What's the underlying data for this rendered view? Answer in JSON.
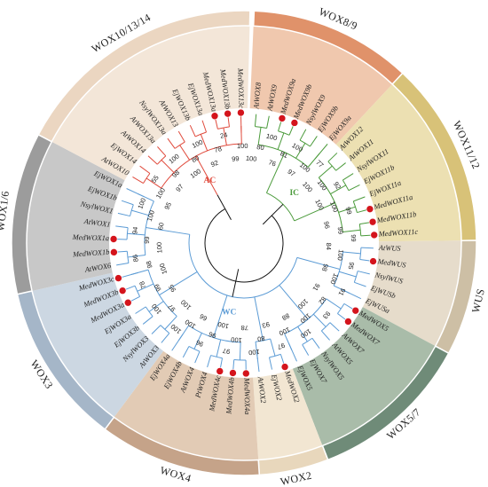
{
  "groups": [
    {
      "id": "wox8-9",
      "label": "WOX8/9",
      "color": "#e0926a",
      "bg": "#f0c8ae"
    },
    {
      "id": "wox11-12",
      "label": "WOX11/12",
      "color": "#d8c278",
      "bg": "#ece0b2"
    },
    {
      "id": "wus",
      "label": "WUS",
      "color": "#cdbfa5",
      "bg": "#e6dccb"
    },
    {
      "id": "wox5-7",
      "label": "WOX5/7",
      "color": "#6f8b78",
      "bg": "#a9bca9"
    },
    {
      "id": "wox2",
      "label": "WOX2",
      "color": "#e8d7bc",
      "bg": "#f2e6d2"
    },
    {
      "id": "wox4",
      "label": "WOX4",
      "color": "#c5a389",
      "bg": "#e2cbb5"
    },
    {
      "id": "wox3",
      "label": "WOX3",
      "color": "#a5b6c8",
      "bg": "#ccd7e2"
    },
    {
      "id": "wox1-6",
      "label": "WOX1/6",
      "color": "#9c9c9c",
      "bg": "#c8c8c8"
    },
    {
      "id": "wox10-13-14",
      "label": "WOX10/13/14",
      "color": "#ebd6c1",
      "bg": "#f3e6d8"
    }
  ],
  "clades": [
    {
      "label": "AC",
      "color": "#e04a3c"
    },
    {
      "label": "IC",
      "color": "#4a9a3a"
    },
    {
      "label": "WC",
      "color": "#5b9bd5"
    }
  ],
  "leaves": [
    {
      "label": "AtWOX8",
      "marked": false,
      "group": "wox8-9",
      "clade": "IC"
    },
    {
      "label": "AtWOX9",
      "marked": false,
      "group": "wox8-9",
      "clade": "IC"
    },
    {
      "label": "MedWOX9a",
      "marked": true,
      "group": "wox8-9",
      "clade": "IC"
    },
    {
      "label": "MedWOX9b",
      "marked": true,
      "group": "wox8-9",
      "clade": "IC"
    },
    {
      "label": "NsylWOX9",
      "marked": false,
      "group": "wox8-9",
      "clade": "IC"
    },
    {
      "label": "EjWOX9b",
      "marked": false,
      "group": "wox8-9",
      "clade": "IC"
    },
    {
      "label": "EjWOX9a",
      "marked": false,
      "group": "wox8-9",
      "clade": "IC"
    },
    {
      "label": "AtWOX12",
      "marked": false,
      "group": "wox11-12",
      "clade": "IC"
    },
    {
      "label": "AtWOX11",
      "marked": false,
      "group": "wox11-12",
      "clade": "IC"
    },
    {
      "label": "NsylWOX11",
      "marked": false,
      "group": "wox11-12",
      "clade": "IC"
    },
    {
      "label": "EjWOX11b",
      "marked": false,
      "group": "wox11-12",
      "clade": "IC"
    },
    {
      "label": "EjWOX11a",
      "marked": false,
      "group": "wox11-12",
      "clade": "IC"
    },
    {
      "label": "MedWOX11a",
      "marked": true,
      "group": "wox11-12",
      "clade": "IC"
    },
    {
      "label": "MedWOX11b",
      "marked": true,
      "group": "wox11-12",
      "clade": "IC"
    },
    {
      "label": "MedWOX11c",
      "marked": true,
      "group": "wox11-12",
      "clade": "IC"
    },
    {
      "label": "AtWUS",
      "marked": false,
      "group": "wus",
      "clade": "WC"
    },
    {
      "label": "MedWUS",
      "marked": true,
      "group": "wus",
      "clade": "WC"
    },
    {
      "label": "NsylWUS",
      "marked": false,
      "group": "wus",
      "clade": "WC"
    },
    {
      "label": "EjWUSb",
      "marked": false,
      "group": "wus",
      "clade": "WC"
    },
    {
      "label": "EjWUSa",
      "marked": false,
      "group": "wus",
      "clade": "WC"
    },
    {
      "label": "MedWOX5",
      "marked": true,
      "group": "wox5-7",
      "clade": "WC"
    },
    {
      "label": "MedWOX7",
      "marked": true,
      "group": "wox5-7",
      "clade": "WC"
    },
    {
      "label": "AtWOX7",
      "marked": false,
      "group": "wox5-7",
      "clade": "WC"
    },
    {
      "label": "AtWOX5",
      "marked": false,
      "group": "wox5-7",
      "clade": "WC"
    },
    {
      "label": "NsylWOX5",
      "marked": false,
      "group": "wox5-7",
      "clade": "WC"
    },
    {
      "label": "EjWOX7",
      "marked": false,
      "group": "wox5-7",
      "clade": "WC"
    },
    {
      "label": "EjWOX5",
      "marked": false,
      "group": "wox5-7",
      "clade": "WC"
    },
    {
      "label": "MedWOX2",
      "marked": true,
      "group": "wox2",
      "clade": "WC"
    },
    {
      "label": "EjWOX2",
      "marked": false,
      "group": "wox2",
      "clade": "WC"
    },
    {
      "label": "AtWOX2",
      "marked": false,
      "group": "wox2",
      "clade": "WC"
    },
    {
      "label": "MedWOX4a",
      "marked": true,
      "group": "wox4",
      "clade": "WC"
    },
    {
      "label": "MedWOX4b",
      "marked": true,
      "group": "wox4",
      "clade": "WC"
    },
    {
      "label": "MedWOX4c",
      "marked": true,
      "group": "wox4",
      "clade": "WC"
    },
    {
      "label": "PtWOX4",
      "marked": false,
      "group": "wox4",
      "clade": "WC"
    },
    {
      "label": "AtWOX4",
      "marked": false,
      "group": "wox4",
      "clade": "WC"
    },
    {
      "label": "EjWOX4b",
      "marked": false,
      "group": "wox4",
      "clade": "WC"
    },
    {
      "label": "EjWOX4a",
      "marked": false,
      "group": "wox4",
      "clade": "WC"
    },
    {
      "label": "AtWOX3",
      "marked": false,
      "group": "wox3",
      "clade": "WC"
    },
    {
      "label": "NsylWOX3",
      "marked": false,
      "group": "wox3",
      "clade": "WC"
    },
    {
      "label": "EjWOX3b",
      "marked": false,
      "group": "wox3",
      "clade": "WC"
    },
    {
      "label": "EjWOX3a",
      "marked": false,
      "group": "wox3",
      "clade": "WC"
    },
    {
      "label": "MedWOX3a",
      "marked": true,
      "group": "wox3",
      "clade": "WC"
    },
    {
      "label": "MedWOX3b",
      "marked": true,
      "group": "wox3",
      "clade": "WC"
    },
    {
      "label": "MedWOX3c",
      "marked": true,
      "group": "wox3",
      "clade": "WC"
    },
    {
      "label": "AtWOX6",
      "marked": false,
      "group": "wox1-6",
      "clade": "WC"
    },
    {
      "label": "MedWOX1b",
      "marked": true,
      "group": "wox1-6",
      "clade": "WC"
    },
    {
      "label": "MedWOX1a",
      "marked": true,
      "group": "wox1-6",
      "clade": "WC"
    },
    {
      "label": "AtWOX1",
      "marked": false,
      "group": "wox1-6",
      "clade": "WC"
    },
    {
      "label": "NsylWOX1",
      "marked": false,
      "group": "wox1-6",
      "clade": "WC"
    },
    {
      "label": "EjWOX1b",
      "marked": false,
      "group": "wox1-6",
      "clade": "WC"
    },
    {
      "label": "EjWOX1a",
      "marked": false,
      "group": "wox1-6",
      "clade": "WC"
    },
    {
      "label": "AtWOX10",
      "marked": false,
      "group": "wox10-13-14",
      "clade": "AC"
    },
    {
      "label": "EjWOX14",
      "marked": false,
      "group": "wox10-13-14",
      "clade": "AC"
    },
    {
      "label": "AtWOX14",
      "marked": false,
      "group": "wox10-13-14",
      "clade": "AC"
    },
    {
      "label": "AtWOX13a",
      "marked": false,
      "group": "wox10-13-14",
      "clade": "AC"
    },
    {
      "label": "NsylWOX13a",
      "marked": false,
      "group": "wox10-13-14",
      "clade": "AC"
    },
    {
      "label": "AtWOX13",
      "marked": false,
      "group": "wox10-13-14",
      "clade": "AC"
    },
    {
      "label": "EjWOX13b",
      "marked": false,
      "group": "wox10-13-14",
      "clade": "AC"
    },
    {
      "label": "EjWOX13a",
      "marked": false,
      "group": "wox10-13-14",
      "clade": "AC"
    },
    {
      "label": "MedWOX13a",
      "marked": true,
      "group": "wox10-13-14",
      "clade": "AC"
    },
    {
      "label": "MedWOX13b",
      "marked": true,
      "group": "wox10-13-14",
      "clade": "AC"
    },
    {
      "label": "MedWOX13c",
      "marked": true,
      "group": "wox10-13-14",
      "clade": "AC"
    }
  ],
  "bootstrap": [
    "100",
    "80",
    "100",
    "76",
    "81",
    "100",
    "97",
    "100",
    "77",
    "100",
    "100",
    "92",
    "100",
    "100",
    "99",
    "96",
    "99",
    "99",
    "84",
    "100",
    "95",
    "98",
    "100",
    "91",
    "91",
    "82",
    "93",
    "100",
    "100",
    "100",
    "88",
    "100",
    "97",
    "93",
    "80",
    "100",
    "78",
    "100",
    "97",
    "100",
    "96",
    "96",
    "66",
    "100",
    "100",
    "100",
    "97",
    "100",
    "95",
    "99",
    "78",
    "100",
    "98",
    "86",
    "100",
    "99",
    "94",
    "60",
    "100",
    "100",
    "95",
    "100",
    "55",
    "97",
    "98",
    "100",
    "100",
    "80",
    "100",
    "92",
    "78",
    "24",
    "99",
    "100"
  ],
  "ticks": {
    "wox2": "2",
    "wox4": "4"
  }
}
